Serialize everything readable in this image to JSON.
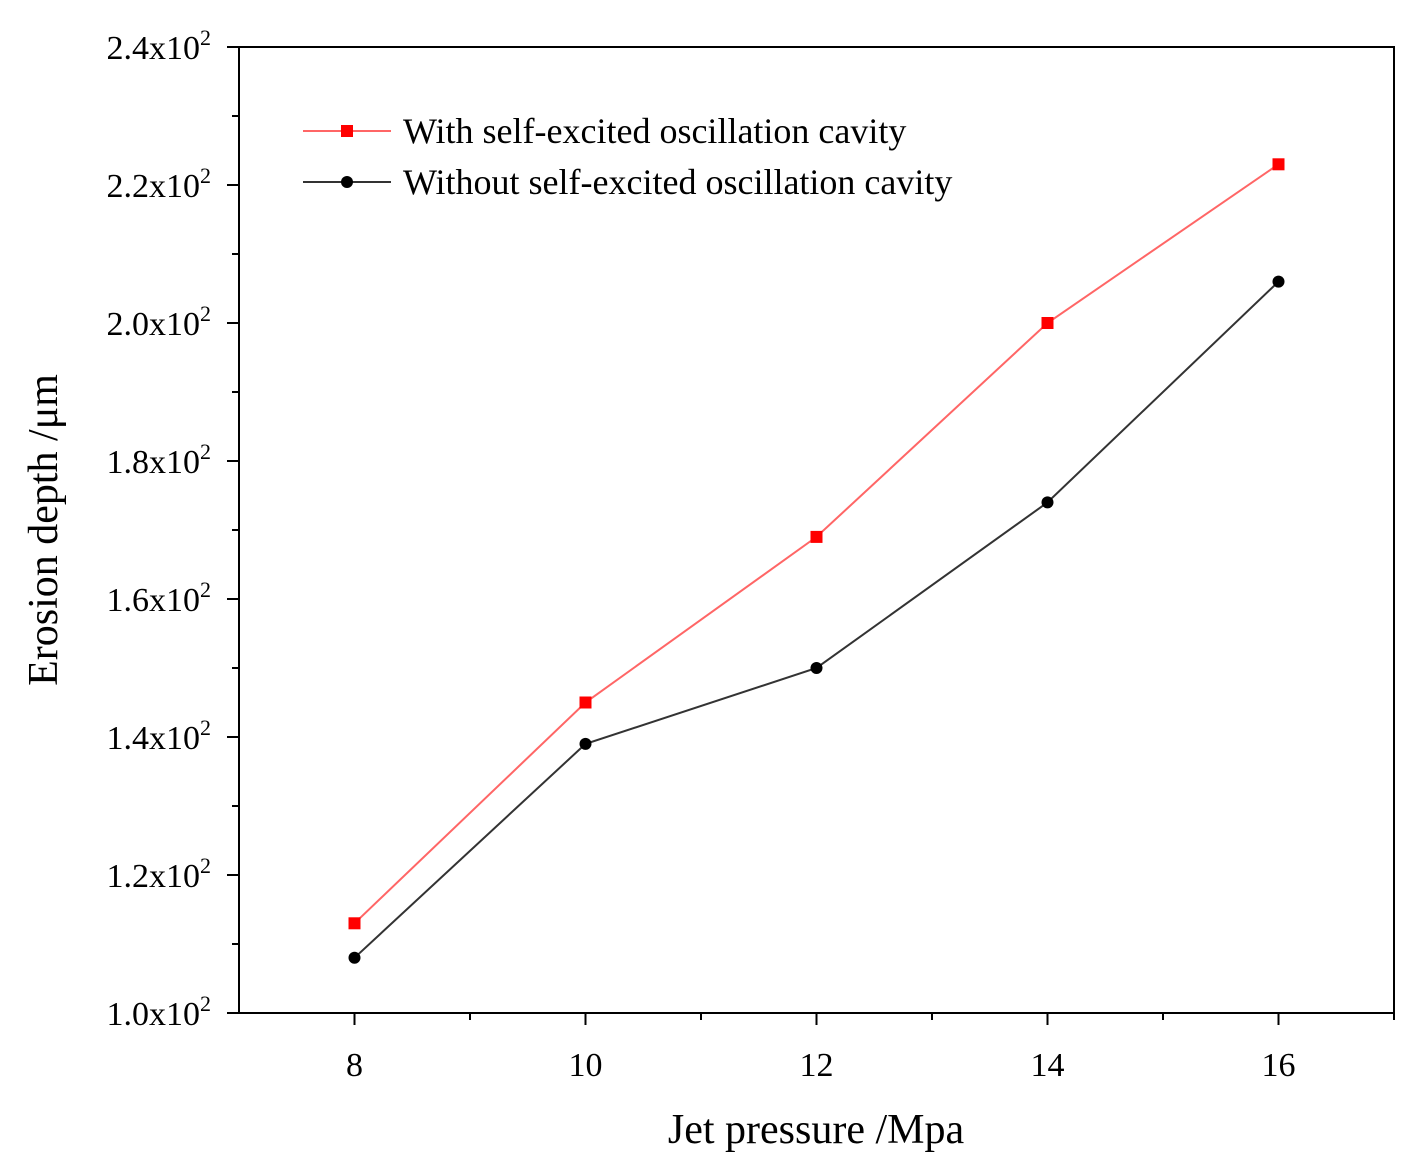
{
  "chart_data": {
    "type": "line",
    "title": "",
    "xlabel": "Jet pressure /Mpa",
    "ylabel": "Erosion depth /μm",
    "xlim": [
      7,
      17
    ],
    "ylim": [
      100,
      240
    ],
    "x_ticks": [
      8,
      10,
      12,
      14,
      16
    ],
    "x_tick_labels": [
      "8",
      "10",
      "12",
      "14",
      "16"
    ],
    "x_minor_ticks": [
      9,
      11,
      13,
      15,
      17
    ],
    "y_ticks": [
      100,
      120,
      140,
      160,
      180,
      200,
      220,
      240
    ],
    "y_tick_labels": [
      {
        "mantissa": "1.0x10",
        "exponent": "2"
      },
      {
        "mantissa": "1.2x10",
        "exponent": "2"
      },
      {
        "mantissa": "1.4x10",
        "exponent": "2"
      },
      {
        "mantissa": "1.6x10",
        "exponent": "2"
      },
      {
        "mantissa": "1.8x10",
        "exponent": "2"
      },
      {
        "mantissa": "2.0x10",
        "exponent": "2"
      },
      {
        "mantissa": "2.2x10",
        "exponent": "2"
      },
      {
        "mantissa": "2.4x10",
        "exponent": "2"
      }
    ],
    "y_minor_ticks": [
      110,
      130,
      150,
      170,
      190,
      210,
      230
    ],
    "grid": false,
    "legend_position": "top-left",
    "x": [
      8,
      10,
      12,
      14,
      16
    ],
    "series": [
      {
        "name": "With self-excited oscillation cavity",
        "values": [
          113,
          145,
          169,
          200,
          223
        ],
        "color": "#ff0000",
        "line_color": "#ff6666",
        "marker": "square"
      },
      {
        "name": "Without self-excited oscillation cavity",
        "values": [
          108,
          139,
          150,
          174,
          206
        ],
        "color": "#000000",
        "line_color": "#333333",
        "marker": "circle"
      }
    ]
  }
}
